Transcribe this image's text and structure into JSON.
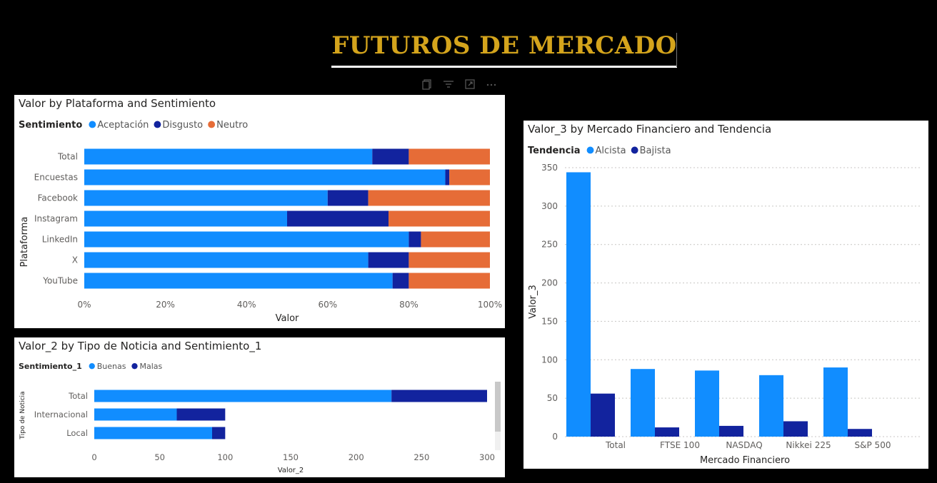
{
  "header": {
    "title": "FUTUROS DE MERCADO"
  },
  "toolbar": {
    "icons": [
      "copy-icon",
      "filter-icon",
      "focus-mode-icon",
      "more-options-icon"
    ]
  },
  "colors": {
    "light_blue": "#118dff",
    "dark_blue": "#12239e",
    "orange": "#e66c37",
    "gold": "#d4a41c"
  },
  "chart_data": [
    {
      "type": "bar",
      "orientation": "horizontal",
      "stacking": "percent",
      "title": "Valor by Plataforma and Sentimiento",
      "legend_title": "Sentimiento",
      "legend_placement": "top-left",
      "xlabel": "Valor",
      "ylabel": "Plataforma",
      "categories": [
        "Total",
        "Encuestas",
        "Facebook",
        "Instagram",
        "LinkedIn",
        "X",
        "YouTube"
      ],
      "series": [
        {
          "name": "Aceptación",
          "values": [
            71,
            89,
            60,
            50,
            80,
            70,
            76
          ]
        },
        {
          "name": "Disgusto",
          "values": [
            9,
            1,
            10,
            25,
            3,
            10,
            4
          ]
        },
        {
          "name": "Neutro",
          "values": [
            20,
            10,
            30,
            25,
            17,
            20,
            20
          ]
        }
      ],
      "xticks": [
        "0%",
        "20%",
        "40%",
        "60%",
        "80%",
        "100%"
      ],
      "xlim": [
        0,
        100
      ],
      "grid": false
    },
    {
      "type": "bar",
      "orientation": "horizontal",
      "stacking": "stacked",
      "title": "Valor_2 by Tipo de Noticia and Sentimiento_1",
      "legend_title": "Sentimiento_1",
      "legend_placement": "top-left",
      "xlabel": "Valor_2",
      "ylabel": "Tipo de Noticia",
      "categories": [
        "Total",
        "Internacional",
        "Local"
      ],
      "series": [
        {
          "name": "Buenas",
          "values": [
            227,
            63,
            90
          ]
        },
        {
          "name": "Malas",
          "values": [
            73,
            37,
            10
          ]
        }
      ],
      "xticks": [
        0,
        50,
        100,
        150,
        200,
        250,
        300
      ],
      "xlim": [
        0,
        300
      ],
      "grid": false
    },
    {
      "type": "bar",
      "orientation": "vertical",
      "stacking": "grouped",
      "title": "Valor_3 by Mercado Financiero and Tendencia",
      "legend_title": "Tendencia",
      "legend_placement": "top-left",
      "xlabel": "Mercado Financiero",
      "ylabel": "Valor_3",
      "categories": [
        "Total",
        "FTSE 100",
        "NASDAQ",
        "Nikkei 225",
        "S&P 500"
      ],
      "series": [
        {
          "name": "Alcista",
          "values": [
            344,
            88,
            86,
            80,
            90
          ]
        },
        {
          "name": "Bajista",
          "values": [
            56,
            12,
            14,
            20,
            10
          ]
        }
      ],
      "yticks": [
        0,
        50,
        100,
        150,
        200,
        250,
        300,
        350
      ],
      "ylim": [
        0,
        350
      ],
      "grid": true
    }
  ]
}
